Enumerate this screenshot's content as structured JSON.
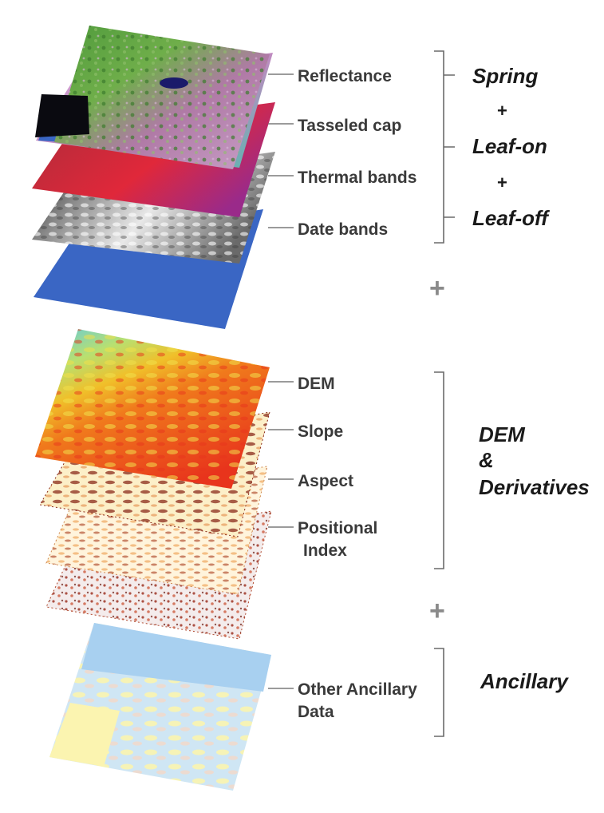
{
  "groups": {
    "imagery": {
      "layers": [
        "Reflectance",
        "Tasseled cap",
        "Thermal bands",
        "Date bands"
      ],
      "title": [
        "Spring",
        "Leaf-on",
        "Leaf-off"
      ],
      "plus": "+"
    },
    "between_1": "+",
    "terrain": {
      "layers": [
        "DEM",
        "Slope",
        "Aspect",
        "Positional",
        "Index"
      ],
      "title": [
        "DEM",
        "&",
        "Derivatives"
      ]
    },
    "between_2": "+",
    "ancillary": {
      "layers": [
        "Other Ancillary",
        "Data"
      ],
      "title": [
        "Ancillary"
      ]
    }
  },
  "colors": {
    "water_blue": "#3a66c4",
    "dem_red": "#e8341c",
    "dem_orange": "#f08a1c",
    "dem_yellow": "#f0e04a",
    "dem_cyan": "#5ac8e8",
    "veg_green": "#5a9a3a",
    "veg_pink": "#c890c8",
    "slope_brown": "#8a2a1a",
    "slope_cream": "#fcefc8",
    "ancillary_sky": "#a8d0f0",
    "ancillary_yellow": "#fbf4b0"
  }
}
